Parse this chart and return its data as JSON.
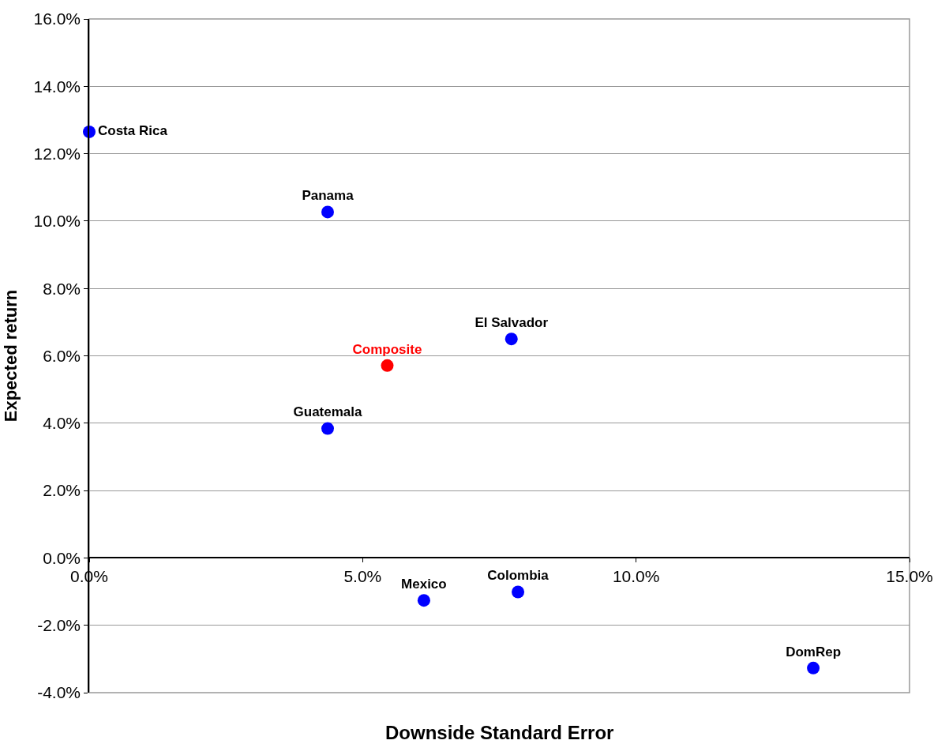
{
  "chart_data": {
    "type": "scatter",
    "xlabel": "Downside Standard Error",
    "ylabel": "Expected return",
    "xlim": [
      0,
      15
    ],
    "xticks": [
      {
        "value": 0,
        "label": "0.0%"
      },
      {
        "value": 5,
        "label": "5.0%"
      },
      {
        "value": 10,
        "label": "10.0%"
      },
      {
        "value": 15,
        "label": "15.0%"
      }
    ],
    "ylim": [
      -4,
      16
    ],
    "yticks": [
      {
        "value": -4,
        "label": "-4.0%"
      },
      {
        "value": -2,
        "label": "-2.0%"
      },
      {
        "value": 0,
        "label": "0.0%"
      },
      {
        "value": 2,
        "label": "2.0%"
      },
      {
        "value": 4,
        "label": "4.0%"
      },
      {
        "value": 6,
        "label": "6.0%"
      },
      {
        "value": 8,
        "label": "8.0%"
      },
      {
        "value": 10,
        "label": "10.0%"
      },
      {
        "value": 12,
        "label": "12.0%"
      },
      {
        "value": 14,
        "label": "14.0%"
      },
      {
        "value": 16,
        "label": "16.0%"
      }
    ],
    "grid": "y",
    "legend": false,
    "marker": "circle",
    "series": [
      {
        "name": "Costa Rica",
        "color": "#0000ff",
        "x": [
          0.0
        ],
        "values": [
          12.65
        ]
      },
      {
        "name": "Panama",
        "color": "#0000ff",
        "x": [
          4.36
        ],
        "values": [
          10.27
        ]
      },
      {
        "name": "El Salvador",
        "color": "#0000ff",
        "x": [
          7.72
        ],
        "values": [
          6.5
        ]
      },
      {
        "name": "Composite",
        "color": "#ff0000",
        "x": [
          5.45
        ],
        "values": [
          5.71
        ]
      },
      {
        "name": "Guatemala",
        "color": "#0000ff",
        "x": [
          4.36
        ],
        "values": [
          3.84
        ]
      },
      {
        "name": "Mexico",
        "color": "#0000ff",
        "x": [
          6.12
        ],
        "values": [
          -1.26
        ]
      },
      {
        "name": "Colombia",
        "color": "#0000ff",
        "x": [
          7.84
        ],
        "values": [
          -1.01
        ]
      },
      {
        "name": "DomRep",
        "color": "#0000ff",
        "x": [
          13.24
        ],
        "values": [
          -3.27
        ]
      }
    ]
  }
}
